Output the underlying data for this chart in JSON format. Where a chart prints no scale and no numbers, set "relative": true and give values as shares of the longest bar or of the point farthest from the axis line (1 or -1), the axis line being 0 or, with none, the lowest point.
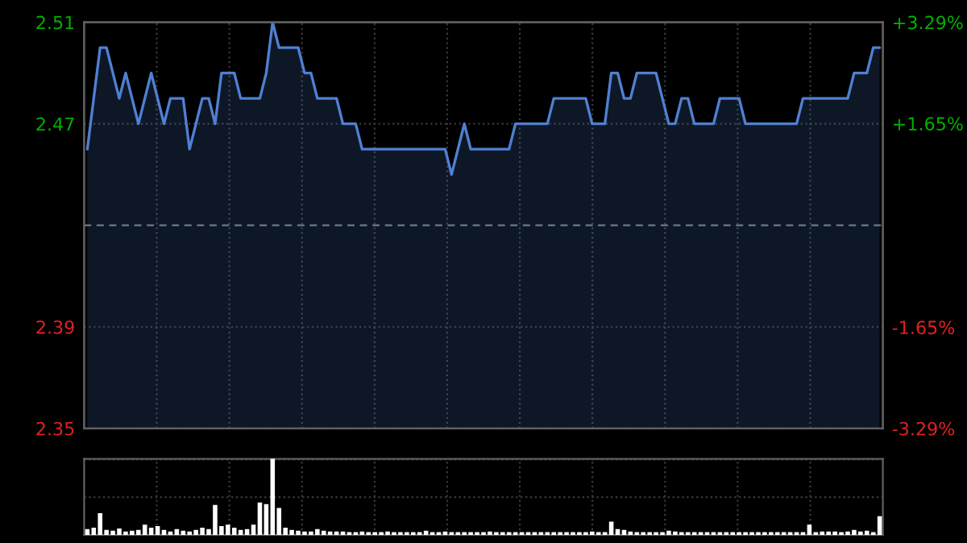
{
  "chart_data": [
    {
      "type": "area",
      "categories": [
        null,
        null,
        null,
        null,
        null,
        null,
        null,
        null,
        null,
        null,
        null,
        null,
        null,
        null,
        null,
        null,
        null,
        null,
        null,
        null,
        null,
        null,
        null,
        null,
        null,
        null,
        null,
        null,
        null,
        null,
        null,
        null,
        null,
        null,
        null,
        null,
        null,
        null,
        null,
        null,
        null,
        null,
        null,
        null,
        null,
        null,
        null,
        null,
        null,
        null,
        null,
        null,
        null,
        null,
        null,
        null,
        null,
        null,
        null,
        null,
        null,
        null,
        null,
        null,
        null,
        null,
        null,
        null,
        null,
        null,
        null,
        null,
        null,
        null,
        null,
        null,
        null,
        null,
        null,
        null,
        null,
        null,
        null,
        null,
        null,
        null,
        null,
        null,
        null,
        null,
        null,
        null,
        null,
        null,
        null,
        null,
        null,
        null,
        null,
        null,
        null,
        null,
        null,
        null,
        null,
        null,
        null,
        null,
        null,
        null,
        null,
        null,
        null,
        null,
        null,
        null,
        null,
        null,
        null,
        null,
        null,
        null,
        null,
        null,
        null
      ],
      "series": [
        {
          "color": "#4f80d2",
          "values": [
            2.46,
            2.48,
            2.5,
            2.5,
            2.49,
            2.48,
            2.49,
            2.48,
            2.47,
            2.48,
            2.49,
            2.48,
            2.47,
            2.48,
            2.48,
            2.48,
            2.46,
            2.47,
            2.48,
            2.48,
            2.47,
            2.49,
            2.49,
            2.49,
            2.48,
            2.48,
            2.48,
            2.48,
            2.49,
            2.51,
            2.5,
            2.5,
            2.5,
            2.5,
            2.49,
            2.49,
            2.48,
            2.48,
            2.48,
            2.48,
            2.47,
            2.47,
            2.47,
            2.46,
            2.46,
            2.46,
            2.46,
            2.46,
            2.46,
            2.46,
            2.46,
            2.46,
            2.46,
            2.46,
            2.46,
            2.46,
            2.46,
            2.45,
            2.46,
            2.47,
            2.46,
            2.46,
            2.46,
            2.46,
            2.46,
            2.46,
            2.46,
            2.47,
            2.47,
            2.47,
            2.47,
            2.47,
            2.47,
            2.48,
            2.48,
            2.48,
            2.48,
            2.48,
            2.48,
            2.47,
            2.47,
            2.47,
            2.49,
            2.49,
            2.48,
            2.48,
            2.49,
            2.49,
            2.49,
            2.49,
            2.48,
            2.47,
            2.47,
            2.48,
            2.48,
            2.47,
            2.47,
            2.47,
            2.47,
            2.48,
            2.48,
            2.48,
            2.48,
            2.47,
            2.47,
            2.47,
            2.47,
            2.47,
            2.47,
            2.47,
            2.47,
            2.47,
            2.48,
            2.48,
            2.48,
            2.48,
            2.48,
            2.48,
            2.48,
            2.48,
            2.49,
            2.49,
            2.49,
            2.5,
            2.5
          ]
        }
      ],
      "ylim": [
        2.35,
        2.51
      ],
      "yticks": [
        2.35,
        2.39,
        2.47,
        2.51
      ],
      "y2lim": [
        -3.29,
        3.29
      ],
      "y2ticks": [
        {
          "value": -3.29,
          "label": "-3.29%"
        },
        {
          "value": -1.65,
          "label": "-1.65%"
        },
        {
          "value": 1.65,
          "label": "+1.65%"
        },
        {
          "value": 3.29,
          "label": "+3.29%"
        }
      ],
      "ref_lines": [
        {
          "axis": "y",
          "value": 2.43,
          "color": "#6a7a8a",
          "line_style": "dashed"
        }
      ],
      "grid": true,
      "tick_labels": "y"
    },
    {
      "type": "bar",
      "relative": true,
      "categories": [
        null,
        null,
        null,
        null,
        null,
        null,
        null,
        null,
        null,
        null,
        null,
        null,
        null,
        null,
        null,
        null,
        null,
        null,
        null,
        null,
        null,
        null,
        null,
        null,
        null,
        null,
        null,
        null,
        null,
        null,
        null,
        null,
        null,
        null,
        null,
        null,
        null,
        null,
        null,
        null,
        null,
        null,
        null,
        null,
        null,
        null,
        null,
        null,
        null,
        null,
        null,
        null,
        null,
        null,
        null,
        null,
        null,
        null,
        null,
        null,
        null,
        null,
        null,
        null,
        null,
        null,
        null,
        null,
        null,
        null,
        null,
        null,
        null,
        null,
        null,
        null,
        null,
        null,
        null,
        null,
        null,
        null,
        null,
        null,
        null,
        null,
        null,
        null,
        null,
        null,
        null,
        null,
        null,
        null,
        null,
        null,
        null,
        null,
        null,
        null,
        null,
        null,
        null,
        null,
        null,
        null,
        null,
        null,
        null,
        null,
        null,
        null,
        null,
        null,
        null,
        null,
        null,
        null,
        null,
        null,
        null,
        null,
        null,
        null,
        null
      ],
      "series": [
        {
          "color": "#9a9a9a",
          "values": [
            0.06,
            0.08,
            0.27,
            0.05,
            0.04,
            0.07,
            0.03,
            0.04,
            0.05,
            0.12,
            0.08,
            0.1,
            0.05,
            0.03,
            0.06,
            0.04,
            0.03,
            0.05,
            0.08,
            0.06,
            0.38,
            0.1,
            0.12,
            0.08,
            0.05,
            0.06,
            0.12,
            0.41,
            0.39,
            1.0,
            0.34,
            0.08,
            0.05,
            0.04,
            0.03,
            0.03,
            0.06,
            0.04,
            0.03,
            0.03,
            0.03,
            0.02,
            0.02,
            0.03,
            0.02,
            0.02,
            0.02,
            0.03,
            0.02,
            0.02,
            0.02,
            0.02,
            0.02,
            0.04,
            0.02,
            0.02,
            0.03,
            0.02,
            0.02,
            0.02,
            0.02,
            0.02,
            0.02,
            0.03,
            0.02,
            0.02,
            0.02,
            0.02,
            0.02,
            0.02,
            0.02,
            0.02,
            0.02,
            0.02,
            0.02,
            0.02,
            0.02,
            0.02,
            0.02,
            0.03,
            0.02,
            0.02,
            0.16,
            0.06,
            0.05,
            0.03,
            0.02,
            0.02,
            0.02,
            0.02,
            0.02,
            0.04,
            0.03,
            0.02,
            0.02,
            0.02,
            0.02,
            0.02,
            0.02,
            0.02,
            0.02,
            0.02,
            0.02,
            0.02,
            0.02,
            0.02,
            0.02,
            0.02,
            0.02,
            0.02,
            0.02,
            0.02,
            0.02,
            0.12,
            0.02,
            0.03,
            0.03,
            0.03,
            0.02,
            0.03,
            0.05,
            0.03,
            0.04,
            0.02,
            0.23
          ]
        }
      ],
      "grid": true,
      "tick_labels": false
    }
  ]
}
